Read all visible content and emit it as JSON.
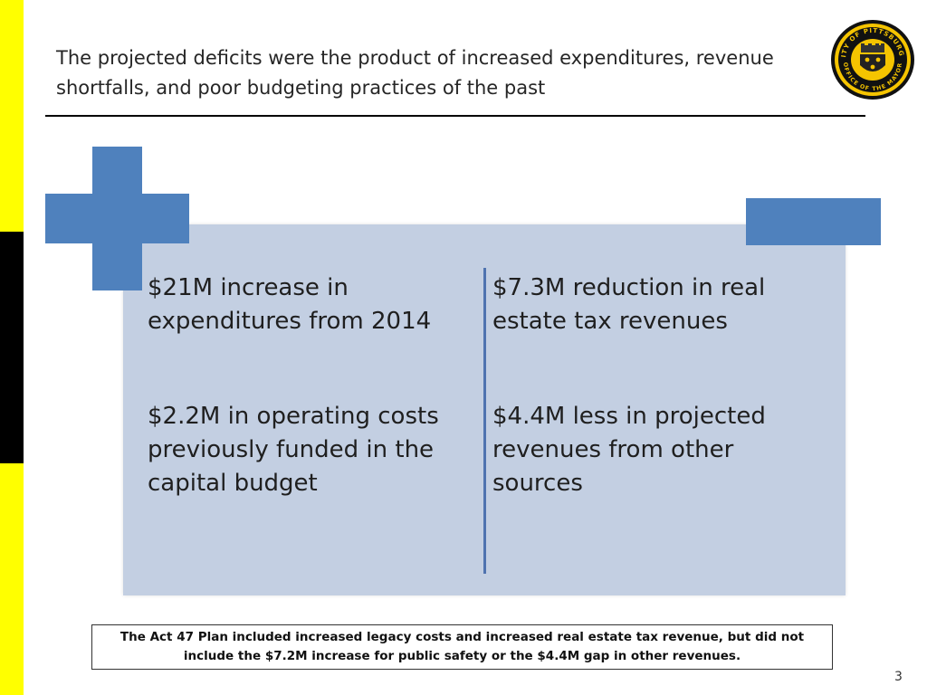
{
  "slide": {
    "title": "The projected deficits were the product of increased expenditures, revenue shortfalls, and poor budgeting practices of the past",
    "seal": {
      "top_text": "CITY OF PITTSBURGH",
      "bottom_text": "OFFICE OF THE MAYOR"
    },
    "left_items": [
      "$21M increase in expenditures from 2014",
      "$2.2M in operating costs previously funded in the capital budget"
    ],
    "right_items": [
      "$7.3M reduction in real estate tax revenues",
      "$4.4M less in projected revenues from other sources"
    ],
    "note": "The Act 47 Plan included increased legacy costs and increased real estate tax revenue, but did not include the $7.2M increase for public safety or the $4.4M gap in other revenues.",
    "page_number": "3",
    "colors": {
      "accent_blue": "#4f81bd",
      "panel_bg": "#c3cfe2",
      "side_yellow": "#ffff00",
      "side_black": "#000000"
    }
  }
}
